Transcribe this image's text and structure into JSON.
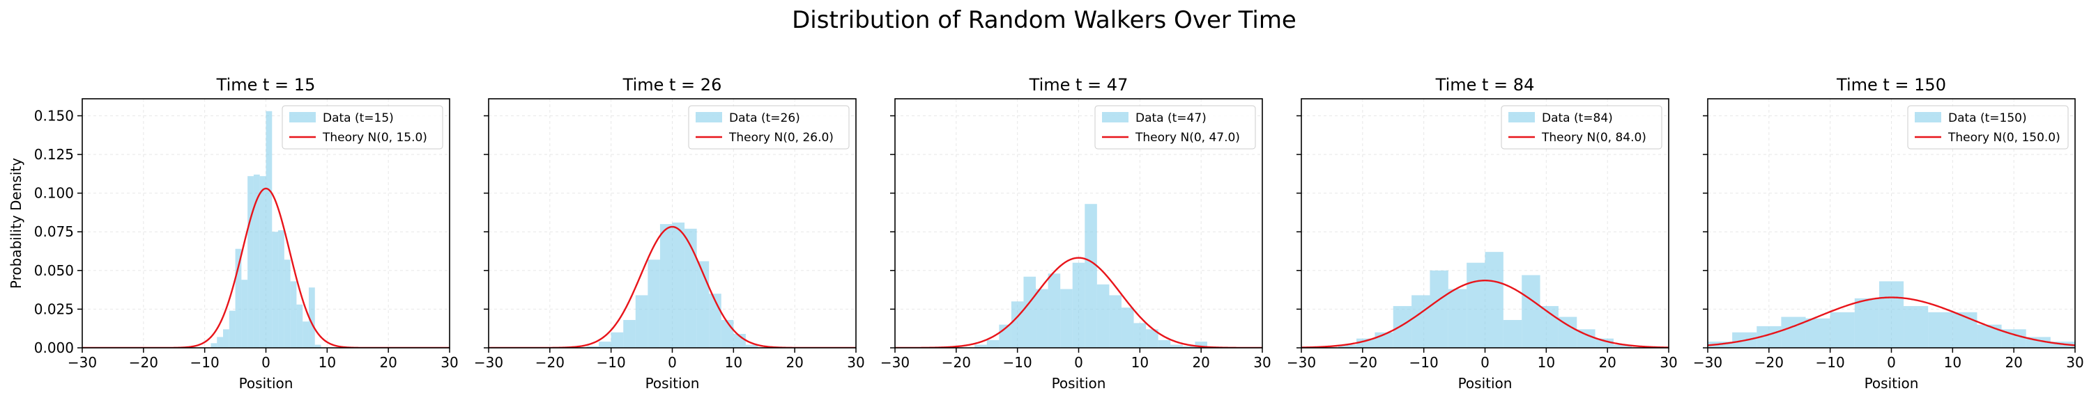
{
  "figure": {
    "suptitle": "Distribution of Random Walkers Over Time"
  },
  "colors": {
    "hist_fill": "#87ceeb",
    "theory_line": "#e8141a",
    "grid": "#b0b0b0",
    "axis": "#000000"
  },
  "chart_data": [
    {
      "type": "bar",
      "title": "Time t = 15",
      "xlabel": "Position",
      "ylabel": "Probability Density",
      "xlim": [
        -30,
        30
      ],
      "ylim": [
        0,
        0.161
      ],
      "xticks": [
        -30,
        -20,
        -10,
        0,
        10,
        20,
        30
      ],
      "yticks": [
        "0.000",
        "0.025",
        "0.050",
        "0.075",
        "0.100",
        "0.125",
        "0.150"
      ],
      "grid": true,
      "legend_position": "top-right",
      "bins": {
        "edges": [
          -9,
          -8,
          -7,
          -6,
          -5,
          -4,
          -3,
          -2,
          -1,
          0,
          1,
          2,
          3,
          4,
          5,
          6,
          7,
          8,
          9
        ],
        "values": [
          0.003,
          0.007,
          0.012,
          0.024,
          0.064,
          0.044,
          0.111,
          0.112,
          0.111,
          0.153,
          0.075,
          0.076,
          0.057,
          0.043,
          0.028,
          0.017,
          0.039,
          0.002
        ]
      },
      "theory": {
        "mean": 0,
        "variance": 15.0
      },
      "legend": [
        "Data (t=15)",
        "Theory N(0, 15.0)"
      ]
    },
    {
      "type": "bar",
      "title": "Time t = 26",
      "xlabel": "Position",
      "ylim": [
        0,
        0.161
      ],
      "xlim": [
        -30,
        30
      ],
      "xticks": [
        -30,
        -20,
        -10,
        0,
        10,
        20,
        30
      ],
      "grid": true,
      "legend_position": "top-right",
      "bins": {
        "edges": [
          -14,
          -12,
          -10,
          -8,
          -6,
          -4,
          -2,
          0,
          2,
          4,
          6,
          8,
          10,
          12,
          14
        ],
        "values": [
          0.001,
          0.004,
          0.01,
          0.018,
          0.034,
          0.057,
          0.08,
          0.081,
          0.077,
          0.056,
          0.035,
          0.018,
          0.009,
          0.002
        ]
      },
      "theory": {
        "mean": 0,
        "variance": 26.0
      },
      "legend": [
        "Data (t=26)",
        "Theory N(0, 26.0)"
      ]
    },
    {
      "type": "bar",
      "title": "Time t = 47",
      "xlabel": "Position",
      "ylim": [
        0,
        0.161
      ],
      "xlim": [
        -30,
        30
      ],
      "xticks": [
        -30,
        -20,
        -10,
        0,
        10,
        20,
        30
      ],
      "grid": true,
      "legend_position": "top-right",
      "bins": {
        "edges": [
          -17,
          -15,
          -13,
          -11,
          -9,
          -7,
          -5,
          -3,
          -1,
          1,
          3,
          5,
          7,
          9,
          11,
          13,
          15,
          17,
          19,
          21
        ],
        "values": [
          0.002,
          0.005,
          0.015,
          0.03,
          0.046,
          0.038,
          0.048,
          0.038,
          0.055,
          0.093,
          0.041,
          0.034,
          0.026,
          0.016,
          0.012,
          0.005,
          0.002,
          0.001,
          0.004
        ]
      },
      "theory": {
        "mean": 0,
        "variance": 47.0
      },
      "legend": [
        "Data (t=47)",
        "Theory N(0, 47.0)"
      ]
    },
    {
      "type": "bar",
      "title": "Time t = 84",
      "xlabel": "Position",
      "ylim": [
        0,
        0.161
      ],
      "xlim": [
        -30,
        30
      ],
      "xticks": [
        -30,
        -20,
        -10,
        0,
        10,
        20,
        30
      ],
      "grid": true,
      "legend_position": "top-right",
      "bins": {
        "edges": [
          -24,
          -21,
          -18,
          -15,
          -12,
          -9,
          -6,
          -3,
          0,
          3,
          6,
          9,
          12,
          15,
          18,
          21,
          24
        ],
        "values": [
          0.002,
          0.006,
          0.01,
          0.027,
          0.034,
          0.05,
          0.038,
          0.055,
          0.062,
          0.018,
          0.047,
          0.027,
          0.02,
          0.012,
          0.006,
          0.002
        ]
      },
      "theory": {
        "mean": 0,
        "variance": 84.0
      },
      "legend": [
        "Data (t=84)",
        "Theory N(0, 84.0)"
      ]
    },
    {
      "type": "bar",
      "title": "Time t = 150",
      "xlabel": "Position",
      "ylim": [
        0,
        0.161
      ],
      "xlim": [
        -30,
        30
      ],
      "xticks": [
        -30,
        -20,
        -10,
        0,
        10,
        20,
        30
      ],
      "grid": true,
      "legend_position": "top-right",
      "bins": {
        "edges": [
          -30,
          -26,
          -22,
          -18,
          -14,
          -10,
          -6,
          -2,
          2,
          6,
          10,
          14,
          18,
          22,
          26,
          30
        ],
        "values": [
          0.004,
          0.01,
          0.014,
          0.02,
          0.019,
          0.023,
          0.032,
          0.043,
          0.027,
          0.023,
          0.023,
          0.015,
          0.012,
          0.007,
          0.004
        ]
      },
      "theory": {
        "mean": 0,
        "variance": 150.0
      },
      "legend": [
        "Data (t=150)",
        "Theory N(0, 150.0)"
      ]
    }
  ]
}
